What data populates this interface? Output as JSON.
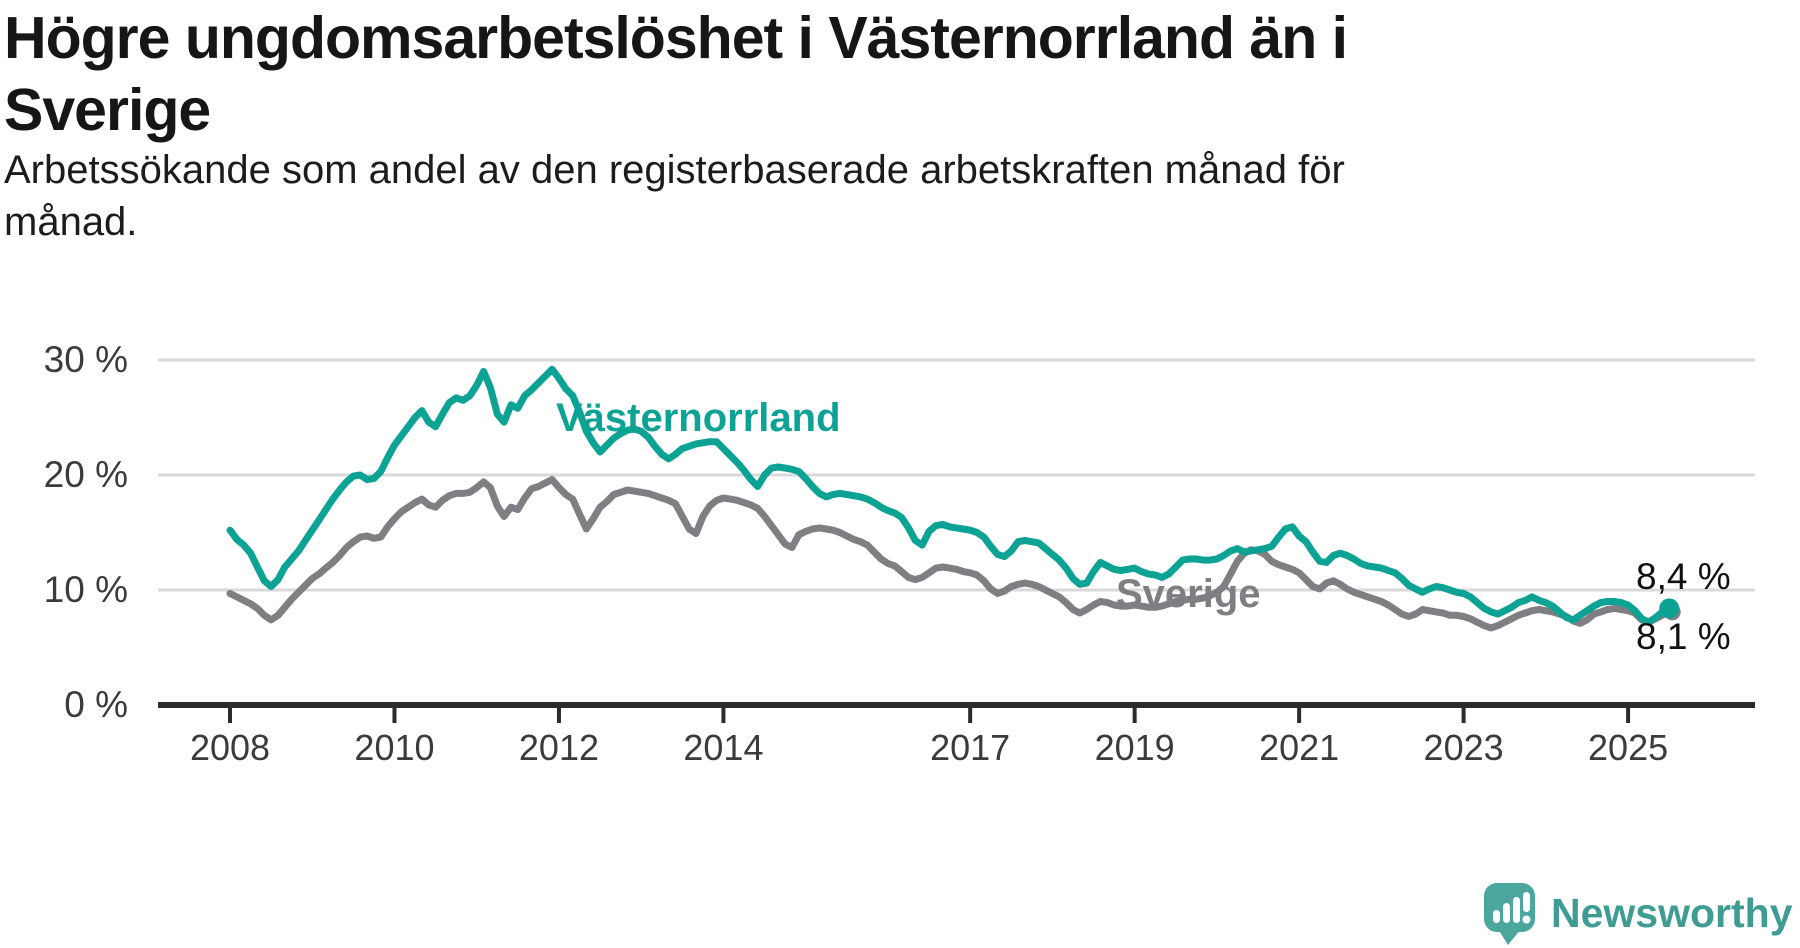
{
  "title": {
    "full": "Högre ungdomsarbetslöshet i Västernorrland än i Sverige",
    "lines": [
      "Högre ungdomsarbetslöshet i Västernorrland än i",
      "Sverige"
    ]
  },
  "subtitle": {
    "full": "Arbetssökande som andel av den registerbaserade arbetskraften månad för månad.",
    "lines": [
      "Arbetssökande som andel av den registerbaserade arbetskraften månad för",
      "månad."
    ]
  },
  "colors": {
    "vasternorrland": "#0CA294",
    "sverige": "#7E7E83",
    "gridline": "#D9D9D9",
    "axis": "#2B2B2B",
    "tick_text": "#3B3B3B",
    "title_text": "#161616",
    "logo_teal": "#4BA79E",
    "logo_text": "#3F9C93"
  },
  "logo": {
    "text": "Newsworthy",
    "icon": "speech-bubble-bar-chart-exclamation"
  },
  "chart_data": {
    "type": "line",
    "title": "Högre ungdomsarbetslöshet i Västernorrland än i Sverige",
    "subtitle": "Arbetssökande som andel av den registerbaserade arbetskraften månad för månad.",
    "unit": "%",
    "grid": "horizontal",
    "legend_position": "inline-labels",
    "x_start": 2008.0,
    "x_step": 0.0833333,
    "x_end": 2025.5,
    "ylim": [
      0,
      31
    ],
    "y_ticks": [
      {
        "value": 0,
        "label": "0 %"
      },
      {
        "value": 10,
        "label": "10 %"
      },
      {
        "value": 20,
        "label": "20 %"
      },
      {
        "value": 30,
        "label": "30 %"
      }
    ],
    "x_ticks": [
      {
        "year": 2008,
        "label": "2008"
      },
      {
        "year": 2010,
        "label": "2010"
      },
      {
        "year": 2012,
        "label": "2012"
      },
      {
        "year": 2014,
        "label": "2014"
      },
      {
        "year": 2017,
        "label": "2017"
      },
      {
        "year": 2019,
        "label": "2019"
      },
      {
        "year": 2021,
        "label": "2021"
      },
      {
        "year": 2023,
        "label": "2023"
      },
      {
        "year": 2025,
        "label": "2025"
      }
    ],
    "series": [
      {
        "name": "Västernorrland",
        "color": "#0CA294",
        "end_label": "8,4 %",
        "final_value": 8.4,
        "values": [
          15.2,
          14.4,
          13.9,
          13.2,
          12.0,
          10.8,
          10.3,
          10.9,
          12.0,
          12.7,
          13.4,
          14.3,
          15.2,
          16.1,
          17.0,
          17.9,
          18.7,
          19.4,
          19.9,
          20.0,
          19.6,
          19.7,
          20.3,
          21.5,
          22.6,
          23.4,
          24.2,
          25.0,
          25.6,
          24.6,
          24.2,
          25.3,
          26.3,
          26.7,
          26.5,
          26.9,
          27.8,
          29.0,
          27.6,
          25.3,
          24.6,
          26.1,
          25.8,
          26.9,
          27.4,
          28.0,
          28.6,
          29.2,
          28.4,
          27.5,
          26.9,
          25.5,
          23.8,
          22.8,
          22.0,
          22.6,
          23.2,
          23.6,
          23.9,
          24.0,
          23.8,
          23.3,
          22.5,
          21.8,
          21.4,
          21.8,
          22.3,
          22.5,
          22.7,
          22.8,
          22.9,
          22.9,
          22.3,
          21.7,
          21.1,
          20.4,
          19.6,
          19.0,
          20.0,
          20.6,
          20.7,
          20.6,
          20.5,
          20.3,
          19.7,
          19.0,
          18.4,
          18.1,
          18.3,
          18.4,
          18.3,
          18.2,
          18.1,
          17.9,
          17.6,
          17.2,
          16.9,
          16.7,
          16.3,
          15.4,
          14.3,
          13.9,
          15.1,
          15.6,
          15.7,
          15.5,
          15.4,
          15.3,
          15.2,
          15.0,
          14.6,
          13.8,
          13.1,
          12.9,
          13.4,
          14.2,
          14.3,
          14.2,
          14.1,
          13.6,
          13.1,
          12.6,
          11.9,
          11.0,
          10.5,
          10.6,
          11.6,
          12.4,
          12.1,
          11.8,
          11.7,
          11.8,
          11.9,
          11.6,
          11.4,
          11.3,
          11.1,
          11.4,
          12.0,
          12.6,
          12.7,
          12.7,
          12.6,
          12.6,
          12.7,
          13.0,
          13.4,
          13.6,
          13.3,
          13.4,
          13.5,
          13.6,
          13.8,
          14.6,
          15.3,
          15.5,
          14.7,
          14.2,
          13.3,
          12.5,
          12.4,
          13.0,
          13.2,
          13.0,
          12.7,
          12.3,
          12.1,
          12.0,
          11.9,
          11.7,
          11.5,
          11.0,
          10.4,
          10.1,
          9.8,
          10.1,
          10.3,
          10.2,
          10.0,
          9.8,
          9.7,
          9.4,
          8.9,
          8.4,
          8.1,
          7.9,
          8.2,
          8.5,
          8.9,
          9.1,
          9.4,
          9.1,
          8.9,
          8.6,
          8.1,
          7.6,
          7.4,
          7.8,
          8.2,
          8.6,
          8.9,
          9.0,
          9.0,
          8.9,
          8.7,
          8.2,
          7.5,
          7.2,
          7.6,
          8.1,
          8.4
        ]
      },
      {
        "name": "Sverige",
        "color": "#7E7E83",
        "end_label": "8,1 %",
        "final_value": 8.1,
        "values": [
          9.7,
          9.4,
          9.1,
          8.8,
          8.4,
          7.8,
          7.4,
          7.8,
          8.5,
          9.2,
          9.8,
          10.4,
          11.0,
          11.4,
          11.9,
          12.4,
          13.0,
          13.7,
          14.2,
          14.6,
          14.7,
          14.5,
          14.6,
          15.5,
          16.2,
          16.8,
          17.2,
          17.6,
          17.9,
          17.4,
          17.2,
          17.8,
          18.2,
          18.4,
          18.4,
          18.5,
          18.9,
          19.4,
          18.9,
          17.3,
          16.4,
          17.2,
          17.0,
          18.0,
          18.8,
          19.0,
          19.3,
          19.6,
          18.9,
          18.3,
          17.9,
          16.6,
          15.3,
          16.2,
          17.2,
          17.7,
          18.3,
          18.5,
          18.7,
          18.6,
          18.5,
          18.4,
          18.2,
          18.0,
          17.8,
          17.5,
          16.4,
          15.3,
          14.9,
          16.4,
          17.3,
          17.8,
          18.0,
          17.9,
          17.8,
          17.6,
          17.4,
          17.1,
          16.4,
          15.6,
          14.8,
          14.0,
          13.7,
          14.8,
          15.1,
          15.3,
          15.4,
          15.3,
          15.2,
          15.0,
          14.7,
          14.4,
          14.2,
          13.9,
          13.3,
          12.7,
          12.3,
          12.1,
          11.6,
          11.1,
          10.9,
          11.1,
          11.5,
          11.9,
          12.0,
          11.9,
          11.8,
          11.6,
          11.5,
          11.3,
          10.8,
          10.1,
          9.7,
          9.9,
          10.3,
          10.5,
          10.6,
          10.5,
          10.3,
          10.0,
          9.7,
          9.4,
          8.9,
          8.3,
          8.0,
          8.3,
          8.7,
          9.0,
          8.9,
          8.7,
          8.6,
          8.6,
          8.7,
          8.6,
          8.5,
          8.5,
          8.6,
          8.8,
          9.0,
          9.1,
          9.2,
          9.2,
          9.3,
          9.5,
          9.8,
          10.3,
          11.4,
          12.5,
          13.2,
          13.5,
          13.4,
          13.1,
          12.5,
          12.2,
          12.0,
          11.8,
          11.5,
          10.9,
          10.3,
          10.1,
          10.6,
          10.8,
          10.5,
          10.1,
          9.8,
          9.6,
          9.4,
          9.2,
          9.0,
          8.7,
          8.3,
          7.9,
          7.7,
          7.9,
          8.3,
          8.2,
          8.1,
          8.0,
          7.8,
          7.8,
          7.7,
          7.5,
          7.2,
          6.9,
          6.7,
          6.9,
          7.2,
          7.5,
          7.8,
          8.0,
          8.2,
          8.3,
          8.2,
          8.1,
          7.9,
          7.7,
          7.3,
          7.1,
          7.4,
          7.9,
          8.1,
          8.3,
          8.4,
          8.3,
          8.2,
          8.0,
          7.4,
          7.2,
          7.5,
          7.8,
          8.1
        ]
      }
    ]
  }
}
